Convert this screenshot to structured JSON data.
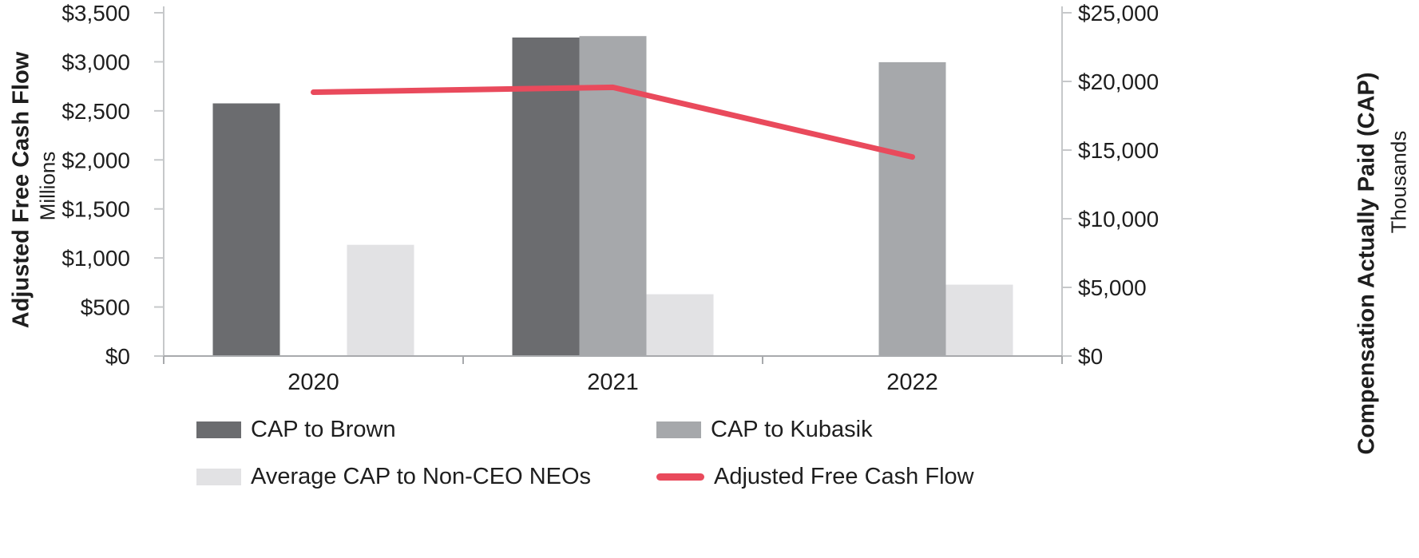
{
  "colors": {
    "cap_brown": "#6b6c6f",
    "cap_kubasik": "#a6a8ab",
    "cap_neo": "#e2e2e4",
    "afcf_line": "#e94a5c",
    "text": "#1e1e1e",
    "axis_light": "#c6c8ca",
    "axis_dark": "#a8aaad"
  },
  "chart_data": {
    "type": "bar",
    "subtype": "clustered bars on right axis with line overlay on left axis",
    "title": "",
    "categories": [
      "2020",
      "2021",
      "2022"
    ],
    "series": [
      {
        "name": "CAP to Brown",
        "type": "bar",
        "axis": "right",
        "color_key": "cap_brown",
        "values": [
          18400,
          23200,
          null
        ]
      },
      {
        "name": "CAP to Kubasik",
        "type": "bar",
        "axis": "right",
        "color_key": "cap_kubasik",
        "values": [
          null,
          23300,
          21400
        ]
      },
      {
        "name": "Average CAP to Non-CEO NEOs",
        "type": "bar",
        "axis": "right",
        "color_key": "cap_neo",
        "values": [
          8100,
          4500,
          5200
        ]
      },
      {
        "name": "Adjusted Free Cash Flow",
        "type": "line",
        "axis": "left",
        "color_key": "afcf_line",
        "values": [
          2690,
          2740,
          2030
        ]
      }
    ],
    "left_axis": {
      "title": "Adjusted Free Cash Flow",
      "subtitle": "Millions",
      "min": 0,
      "max": 3500,
      "step": 500,
      "tick_labels": [
        "$3,500",
        "$3,000",
        "$2,500",
        "$2,000",
        "$1,500",
        "$1,000",
        "$500",
        "$0"
      ]
    },
    "right_axis": {
      "title": "Compensation Actually Paid (CAP)",
      "subtitle": "Thousands",
      "min": 0,
      "max": 25000,
      "step": 5000,
      "tick_labels": [
        "$25,000",
        "$20,000",
        "$15,000",
        "$10,000",
        "$5,000",
        "$0"
      ]
    },
    "grid": false,
    "legend_position": "bottom"
  },
  "legend": {
    "items": [
      {
        "label": "CAP to Brown",
        "color_key": "cap_brown",
        "marker": "bar"
      },
      {
        "label": "CAP to Kubasik",
        "color_key": "cap_kubasik",
        "marker": "bar"
      },
      {
        "label": "Average CAP to Non-CEO NEOs",
        "color_key": "cap_neo",
        "marker": "bar"
      },
      {
        "label": "Adjusted Free Cash Flow",
        "color_key": "afcf_line",
        "marker": "line"
      }
    ]
  }
}
